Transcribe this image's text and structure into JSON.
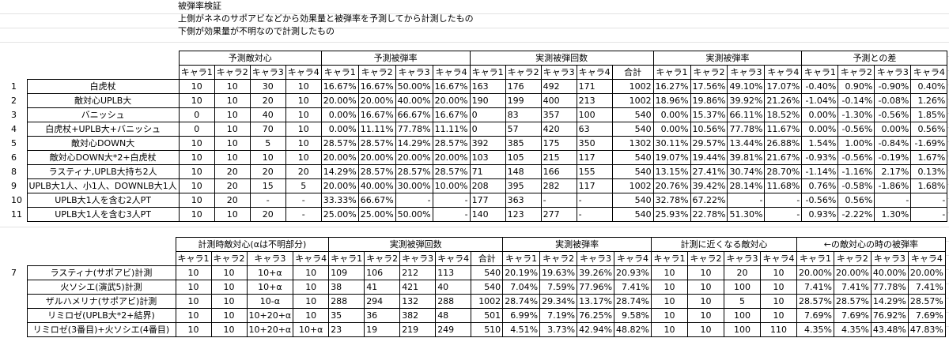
{
  "notes": {
    "line1": "被弾率検証",
    "line2": "上側がネネのサポアビなどから効果量と被弾率を予測してから計測したもの",
    "line3": "下側が効果量が不明なので計測したもの"
  },
  "top": {
    "groups": [
      "予測敵対心",
      "予測被弾率",
      "実測被弾回数",
      "実測被弾率",
      "予測との差"
    ],
    "subheaders": {
      "chars": [
        "キャラ1",
        "キャラ2",
        "キャラ3",
        "キャラ4"
      ],
      "total": "合計"
    },
    "rows": [
      {
        "num": "1",
        "name": "白虎杖",
        "hate": [
          "10",
          "10",
          "30",
          "10"
        ],
        "pred": [
          "16.67%",
          "16.67%",
          "50.00%",
          "16.67%"
        ],
        "hits": [
          "163",
          "176",
          "492",
          "171"
        ],
        "total": "1002",
        "meas": [
          "16.27%",
          "17.56%",
          "49.10%",
          "17.07%"
        ],
        "diff": [
          "-0.40%",
          "0.90%",
          "-0.90%",
          "0.40%"
        ]
      },
      {
        "num": "2",
        "name": "敵対心UPLB大",
        "hate": [
          "10",
          "10",
          "20",
          "10"
        ],
        "pred": [
          "20.00%",
          "20.00%",
          "40.00%",
          "20.00%"
        ],
        "hits": [
          "190",
          "199",
          "400",
          "213"
        ],
        "total": "1002",
        "meas": [
          "18.96%",
          "19.86%",
          "39.92%",
          "21.26%"
        ],
        "diff": [
          "-1.04%",
          "-0.14%",
          "-0.08%",
          "1.26%"
        ]
      },
      {
        "num": "3",
        "name": "バニッシュ",
        "hate": [
          "0",
          "10",
          "40",
          "10"
        ],
        "pred": [
          "0.00%",
          "16.67%",
          "66.67%",
          "16.67%"
        ],
        "hits": [
          "0",
          "83",
          "357",
          "100"
        ],
        "total": "540",
        "meas": [
          "0.00%",
          "15.37%",
          "66.11%",
          "18.52%"
        ],
        "diff": [
          "0.00%",
          "-1.30%",
          "-0.56%",
          "1.85%"
        ]
      },
      {
        "num": "4",
        "name": "白虎杖+UPLB大+バニッシュ",
        "hate": [
          "0",
          "10",
          "70",
          "10"
        ],
        "pred": [
          "0.00%",
          "11.11%",
          "77.78%",
          "11.11%"
        ],
        "hits": [
          "0",
          "57",
          "420",
          "63"
        ],
        "total": "540",
        "meas": [
          "0.00%",
          "10.56%",
          "77.78%",
          "11.67%"
        ],
        "diff": [
          "0.00%",
          "-0.56%",
          "0.00%",
          "0.56%"
        ]
      },
      {
        "num": "5",
        "name": "敵対心DOWN大",
        "hate": [
          "10",
          "10",
          "5",
          "10"
        ],
        "pred": [
          "28.57%",
          "28.57%",
          "14.29%",
          "28.57%"
        ],
        "hits": [
          "392",
          "385",
          "175",
          "350"
        ],
        "total": "1302",
        "meas": [
          "30.11%",
          "29.57%",
          "13.44%",
          "26.88%"
        ],
        "diff": [
          "1.54%",
          "1.00%",
          "-0.84%",
          "-1.69%"
        ]
      },
      {
        "num": "6",
        "name": "敵対心DOWN大*2+白虎杖",
        "hate": [
          "10",
          "10",
          "10",
          "10"
        ],
        "pred": [
          "20.00%",
          "20.00%",
          "20.00%",
          "20.00%"
        ],
        "hits": [
          "103",
          "105",
          "215",
          "117"
        ],
        "total": "540",
        "meas": [
          "19.07%",
          "19.44%",
          "39.81%",
          "21.67%"
        ],
        "diff": [
          "-0.93%",
          "-0.56%",
          "-0.19%",
          "1.67%"
        ]
      },
      {
        "num": "8",
        "name": "ラスティナ,UPLB大持ち2人",
        "hate": [
          "10",
          "20",
          "20",
          "20"
        ],
        "pred": [
          "14.29%",
          "28.57%",
          "28.57%",
          "28.57%"
        ],
        "hits": [
          "71",
          "148",
          "166",
          "155"
        ],
        "total": "540",
        "meas": [
          "13.15%",
          "27.41%",
          "30.74%",
          "28.70%"
        ],
        "diff": [
          "-1.14%",
          "-1.16%",
          "2.17%",
          "0.13%"
        ]
      },
      {
        "num": "9",
        "name": "UPLB大1人、小1人、DOWNLB大1人",
        "hate": [
          "10",
          "20",
          "15",
          "5"
        ],
        "pred": [
          "20.00%",
          "40.00%",
          "30.00%",
          "10.00%"
        ],
        "hits": [
          "208",
          "395",
          "282",
          "117"
        ],
        "total": "1002",
        "meas": [
          "20.76%",
          "39.42%",
          "28.14%",
          "11.68%"
        ],
        "diff": [
          "0.76%",
          "-0.58%",
          "-1.86%",
          "1.68%"
        ]
      },
      {
        "num": "10",
        "name": "UPLB大1人を含む2人PT",
        "hate": [
          "10",
          "20",
          "-",
          "-"
        ],
        "pred": [
          "33.33%",
          "66.67%",
          "-",
          "-"
        ],
        "hits": [
          "177",
          "363",
          "-",
          "-"
        ],
        "total": "540",
        "meas": [
          "32.78%",
          "67.22%",
          "-",
          "-"
        ],
        "diff": [
          "-0.56%",
          "0.56%",
          "-",
          "-"
        ]
      },
      {
        "num": "11",
        "name": "UPLB大1人を含む3人PT",
        "hate": [
          "10",
          "10",
          "20",
          "-"
        ],
        "pred": [
          "25.00%",
          "25.00%",
          "50.00%",
          "-"
        ],
        "hits": [
          "140",
          "123",
          "277",
          "-"
        ],
        "total": "540",
        "meas": [
          "25.93%",
          "22.78%",
          "51.30%",
          "-"
        ],
        "diff": [
          "0.93%",
          "-2.22%",
          "1.30%",
          "-"
        ]
      }
    ]
  },
  "bottom": {
    "groups": [
      "計測時敵対心(αは不明部分)",
      "実測被弾回数",
      "実測被弾率",
      "計測に近くなる敵対心",
      "←の敵対心の時の被弾率"
    ],
    "subheaders": {
      "chars": [
        "キャラ1",
        "キャラ2",
        "キャラ3",
        "キャラ4"
      ],
      "total": "合計"
    },
    "rows": [
      {
        "num": "7",
        "name": "ラスティナ(サポアビ)計測",
        "hate": [
          "10",
          "10",
          "10+α",
          "10"
        ],
        "hits": [
          "109",
          "106",
          "212",
          "113"
        ],
        "total": "540",
        "meas": [
          "20.19%",
          "19.63%",
          "39.26%",
          "20.93%"
        ],
        "near": [
          "10",
          "10",
          "20",
          "10"
        ],
        "rate": [
          "20.00%",
          "20.00%",
          "40.00%",
          "20.00%"
        ]
      },
      {
        "num": "",
        "name": "火ソシエ(演武5)計測",
        "hate": [
          "10",
          "10",
          "10+α",
          "10"
        ],
        "hits": [
          "38",
          "41",
          "421",
          "40"
        ],
        "total": "540",
        "meas": [
          "7.04%",
          "7.59%",
          "77.96%",
          "7.41%"
        ],
        "near": [
          "10",
          "10",
          "100",
          "10"
        ],
        "rate": [
          "7.41%",
          "7.41%",
          "77.78%",
          "7.41%"
        ]
      },
      {
        "num": "",
        "name": "ザルハメリナ(サポアビ)計測",
        "hate": [
          "10",
          "10",
          "10-α",
          "10"
        ],
        "hits": [
          "288",
          "294",
          "132",
          "288"
        ],
        "total": "1002",
        "meas": [
          "28.74%",
          "29.34%",
          "13.17%",
          "28.74%"
        ],
        "near": [
          "10",
          "10",
          "5",
          "10"
        ],
        "rate": [
          "28.57%",
          "28.57%",
          "14.29%",
          "28.57%"
        ]
      },
      {
        "num": "",
        "name": "リミロゼ(UPLB大*2+結界)",
        "hate": [
          "10",
          "10",
          "10+20+α",
          "10"
        ],
        "hits": [
          "35",
          "36",
          "382",
          "48"
        ],
        "total": "501",
        "meas": [
          "6.99%",
          "7.19%",
          "76.25%",
          "9.58%"
        ],
        "near": [
          "10",
          "10",
          "100",
          "10"
        ],
        "rate": [
          "7.69%",
          "7.69%",
          "76.92%",
          "7.69%"
        ]
      },
      {
        "num": "",
        "name": "リミロゼ(3番目)+火ソシエ(4番目)",
        "hate": [
          "10",
          "10",
          "10+20+α",
          "10+α"
        ],
        "hits": [
          "23",
          "19",
          "219",
          "249"
        ],
        "total": "510",
        "meas": [
          "4.51%",
          "3.73%",
          "42.94%",
          "48.82%"
        ],
        "near": [
          "10",
          "10",
          "100",
          "110"
        ],
        "rate": [
          "4.35%",
          "4.35%",
          "43.48%",
          "47.83%"
        ]
      }
    ]
  }
}
